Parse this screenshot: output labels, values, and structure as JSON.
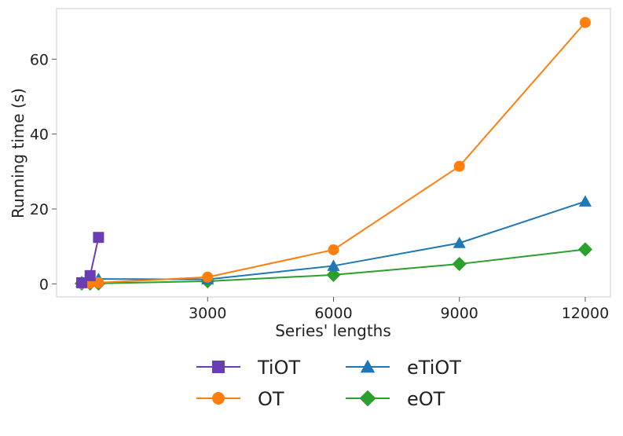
{
  "chart_data": {
    "type": "line",
    "title": "",
    "xlabel": "Series' lengths",
    "ylabel": "Running time (s)",
    "xlim": [
      -600,
      12600
    ],
    "ylim": [
      -3.5,
      73.5
    ],
    "x_ticks": [
      3000,
      6000,
      9000,
      12000
    ],
    "y_ticks": [
      0,
      20,
      40,
      60
    ],
    "x_tick_labels": [
      "3000",
      "6000",
      "9000",
      "12000"
    ],
    "y_tick_labels": [
      "0",
      "20",
      "40",
      "60"
    ],
    "grid": false,
    "legend_position": "bottom",
    "series": [
      {
        "name": "TiOT",
        "color": "#6a3db3",
        "marker": "square",
        "x": [
          0,
          200,
          400
        ],
        "y": [
          0.3,
          2.2,
          12.4
        ]
      },
      {
        "name": "OT",
        "color": "#ff7f0e",
        "marker": "circle",
        "x": [
          0,
          200,
          400,
          3000,
          6000,
          9000,
          12000
        ],
        "y": [
          0.1,
          0.2,
          0.3,
          1.8,
          9.1,
          31.4,
          69.8
        ]
      },
      {
        "name": "eTiOT",
        "color": "#1f77b4",
        "marker": "triangle",
        "x": [
          0,
          200,
          400,
          3000,
          6000,
          9000,
          12000
        ],
        "y": [
          0.5,
          0.9,
          1.3,
          1.2,
          4.8,
          10.9,
          22.0
        ]
      },
      {
        "name": "eOT",
        "color": "#2ca02c",
        "marker": "diamond",
        "x": [
          0,
          200,
          400,
          3000,
          6000,
          9000,
          12000
        ],
        "y": [
          0.1,
          0.1,
          0.1,
          0.7,
          2.4,
          5.3,
          9.2
        ]
      }
    ]
  }
}
